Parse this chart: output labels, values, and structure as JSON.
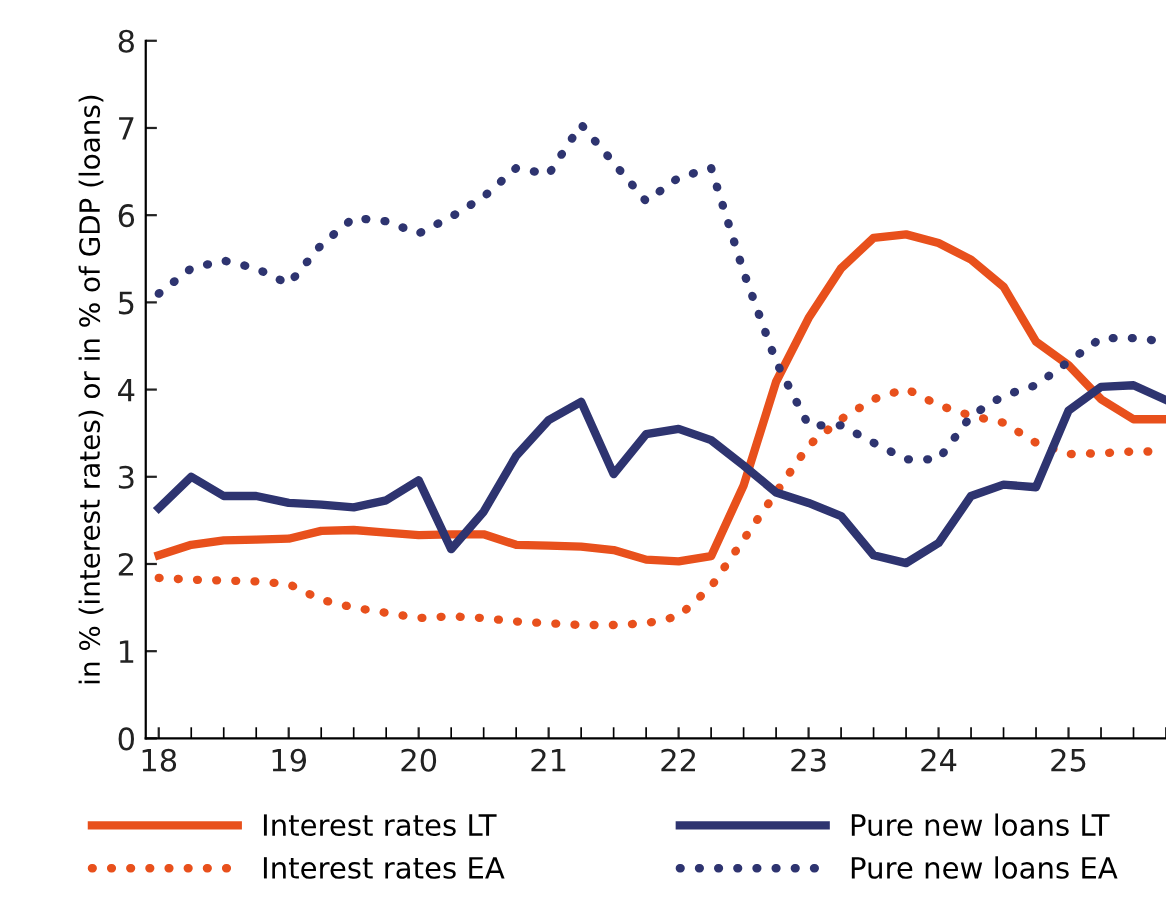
{
  "chart_data": {
    "type": "line",
    "ylabel": "in % (interest rates) or in % of GDP (loans)",
    "x": [
      18,
      18.25,
      18.5,
      18.75,
      19,
      19.25,
      19.5,
      19.75,
      20,
      20.25,
      20.5,
      20.75,
      21,
      21.25,
      21.5,
      21.75,
      22,
      22.25,
      22.5,
      22.75,
      23,
      23.25,
      23.5,
      23.75,
      24,
      24.25,
      24.5,
      24.75,
      25,
      25.25,
      25.5,
      25.75
    ],
    "series": [
      {
        "name": "Interest rates LT",
        "color": "#e8501c",
        "line_style": "solid",
        "values": [
          2.1,
          2.22,
          2.27,
          2.28,
          2.29,
          2.38,
          2.39,
          2.36,
          2.33,
          2.34,
          2.34,
          2.22,
          2.21,
          2.2,
          2.16,
          2.05,
          2.03,
          2.09,
          2.9,
          4.09,
          4.82,
          5.39,
          5.74,
          5.78,
          5.68,
          5.49,
          5.18,
          4.55,
          4.28,
          3.89,
          3.66,
          3.66
        ]
      },
      {
        "name": "Interest rates EA",
        "color": "#e8501c",
        "line_style": "dotted",
        "values": [
          1.84,
          1.82,
          1.81,
          1.8,
          1.77,
          1.59,
          1.5,
          1.44,
          1.38,
          1.4,
          1.38,
          1.34,
          1.32,
          1.3,
          1.3,
          1.32,
          1.4,
          1.74,
          2.28,
          2.82,
          3.36,
          3.66,
          3.89,
          4.01,
          3.82,
          3.7,
          3.62,
          3.39,
          3.26,
          3.27,
          3.29,
          3.29
        ]
      },
      {
        "name": "Pure new loans LT",
        "color": "#2e3470",
        "line_style": "solid",
        "values": [
          2.64,
          3.0,
          2.78,
          2.78,
          2.7,
          2.68,
          2.65,
          2.73,
          2.96,
          2.17,
          2.6,
          3.24,
          3.65,
          3.86,
          3.03,
          3.49,
          3.55,
          3.42,
          3.13,
          2.82,
          2.7,
          2.55,
          2.1,
          2.01,
          2.24,
          2.78,
          2.91,
          2.88,
          3.76,
          4.03,
          4.05,
          3.88
        ]
      },
      {
        "name": "Pure new loans EA",
        "color": "#2e3470",
        "line_style": "dotted",
        "values": [
          5.1,
          5.39,
          5.48,
          5.39,
          5.21,
          5.66,
          5.97,
          5.93,
          5.79,
          5.98,
          6.21,
          6.54,
          6.47,
          7.04,
          6.6,
          6.16,
          6.43,
          6.54,
          5.35,
          4.32,
          3.59,
          3.59,
          3.39,
          3.2,
          3.2,
          3.7,
          3.93,
          4.05,
          4.32,
          4.59,
          4.59,
          4.55
        ]
      }
    ],
    "xlim": [
      17.9,
      25.75
    ],
    "xticks": [
      18,
      19,
      20,
      21,
      22,
      23,
      24,
      25
    ],
    "ylim": [
      0,
      8
    ],
    "yticks": [
      0,
      1,
      2,
      3,
      4,
      5,
      6,
      7,
      8
    ],
    "grid": false,
    "legend": "bottom",
    "marker": "none"
  }
}
